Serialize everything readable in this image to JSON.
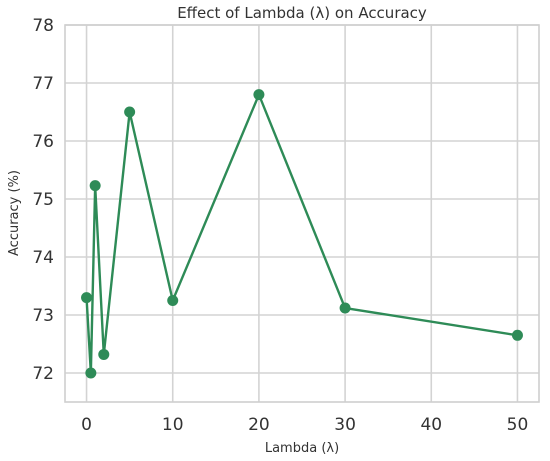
{
  "chart_data": {
    "type": "line",
    "title": "Effect of Lambda (λ) on Accuracy",
    "xlabel": "Lambda (λ)",
    "ylabel": "Accuracy (%)",
    "xlim": [
      -2.5,
      52.5
    ],
    "ylim": [
      71.5,
      78
    ],
    "x_ticks": [
      0,
      10,
      20,
      30,
      40,
      50
    ],
    "y_ticks": [
      72,
      73,
      74,
      75,
      76,
      77,
      78
    ],
    "grid": true,
    "color": "#2e8b57",
    "series": [
      {
        "x": [
          0,
          0.5,
          1,
          2,
          5,
          10,
          20,
          30,
          50
        ],
        "y": [
          73.3,
          72.0,
          75.23,
          72.32,
          76.5,
          73.25,
          76.8,
          73.12,
          72.65
        ]
      }
    ]
  }
}
